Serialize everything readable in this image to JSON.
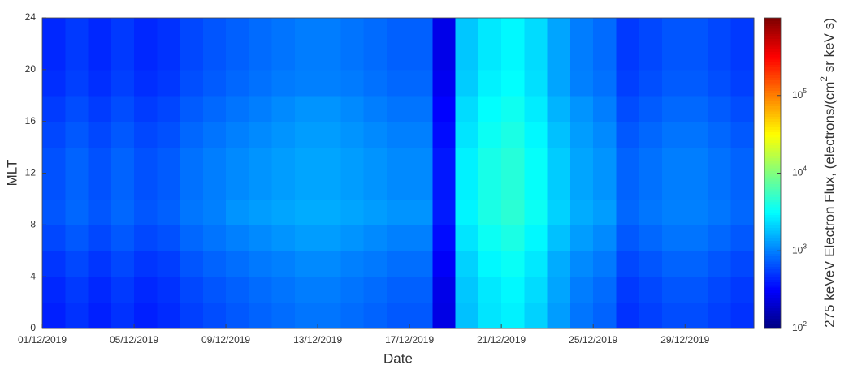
{
  "chart_data": {
    "type": "heatmap",
    "xlabel": "Date",
    "ylabel": "MLT",
    "colorbar_label": "275 keVeV Electron Flux, (electrons/(cm^2 sr keV s)",
    "colormap": "jet",
    "color_scale": "log",
    "clim": [
      100,
      1000000
    ],
    "cticks": [
      {
        "value": 100,
        "label": "10^2"
      },
      {
        "value": 1000,
        "label": "10^3"
      },
      {
        "value": 10000,
        "label": "10^4"
      },
      {
        "value": 100000,
        "label": "10^5"
      }
    ],
    "xlim": [
      0,
      31
    ],
    "xticks": [
      {
        "value": 0,
        "label": "01/12/2019"
      },
      {
        "value": 4,
        "label": "05/12/2019"
      },
      {
        "value": 8,
        "label": "09/12/2019"
      },
      {
        "value": 12,
        "label": "13/12/2019"
      },
      {
        "value": 16,
        "label": "17/12/2019"
      },
      {
        "value": 20,
        "label": "21/12/2019"
      },
      {
        "value": 24,
        "label": "25/12/2019"
      },
      {
        "value": 28,
        "label": "29/12/2019"
      }
    ],
    "ylim": [
      0,
      24
    ],
    "yticks": [
      0,
      4,
      8,
      12,
      16,
      20,
      24
    ],
    "x": [
      0,
      1,
      2,
      3,
      4,
      5,
      6,
      7,
      8,
      9,
      10,
      11,
      12,
      13,
      14,
      15,
      16,
      17,
      18,
      19,
      20,
      21,
      22,
      23,
      24,
      25,
      26,
      27,
      28,
      29,
      30
    ],
    "x_width": 1,
    "y": [
      0,
      2,
      4,
      6,
      8,
      10,
      12,
      14,
      16,
      18,
      20,
      22
    ],
    "y_width": 2,
    "z": [
      [
        420,
        490,
        420,
        490,
        420,
        460,
        560,
        630,
        700,
        770,
        840,
        910,
        910,
        840,
        770,
        700,
        700,
        250,
        1800,
        2500,
        2800,
        2100,
        1300,
        910,
        770,
        490,
        560,
        630,
        630,
        560,
        490
      ],
      [
        450,
        530,
        450,
        530,
        450,
        490,
        600,
        680,
        750,
        830,
        900,
        980,
        980,
        900,
        830,
        750,
        750,
        260,
        1900,
        2600,
        3000,
        2300,
        1400,
        980,
        830,
        530,
        600,
        680,
        680,
        600,
        530
      ],
      [
        510,
        600,
        510,
        600,
        510,
        550,
        680,
        770,
        850,
        940,
        1000,
        1100,
        1100,
        1000,
        940,
        850,
        850,
        300,
        2100,
        3000,
        3400,
        2600,
        1500,
        1100,
        940,
        600,
        680,
        770,
        770,
        680,
        600
      ],
      [
        600,
        700,
        600,
        700,
        600,
        650,
        800,
        900,
        1000,
        1100,
        1200,
        1300,
        1300,
        1200,
        1100,
        1000,
        1000,
        350,
        2500,
        3500,
        4000,
        3000,
        1800,
        1300,
        1100,
        700,
        800,
        900,
        900,
        800,
        700
      ],
      [
        690,
        800,
        690,
        800,
        690,
        750,
        920,
        1000,
        1200,
        1300,
        1400,
        1500,
        1500,
        1400,
        1300,
        1200,
        1200,
        400,
        2900,
        4000,
        4600,
        3500,
        2100,
        1500,
        1300,
        800,
        920,
        1000,
        1000,
        920,
        800
      ],
      [
        660,
        770,
        660,
        770,
        660,
        720,
        880,
        990,
        1100,
        1200,
        1300,
        1400,
        1400,
        1300,
        1200,
        1100,
        1100,
        390,
        2800,
        3900,
        4400,
        3300,
        2000,
        1400,
        1200,
        770,
        880,
        990,
        990,
        880,
        770
      ],
      [
        660,
        770,
        660,
        770,
        660,
        720,
        880,
        990,
        1100,
        1200,
        1300,
        1400,
        1400,
        1300,
        1200,
        1100,
        1100,
        390,
        2800,
        3900,
        4400,
        3300,
        2000,
        1400,
        1200,
        770,
        880,
        990,
        990,
        880,
        770
      ],
      [
        600,
        700,
        600,
        700,
        600,
        650,
        800,
        900,
        1000,
        1100,
        1200,
        1300,
        1300,
        1200,
        1100,
        1000,
        1000,
        350,
        2500,
        3500,
        4000,
        3000,
        1800,
        1300,
        1100,
        700,
        800,
        900,
        900,
        800,
        700
      ],
      [
        540,
        630,
        540,
        630,
        540,
        590,
        720,
        810,
        900,
        990,
        1100,
        1200,
        1200,
        1100,
        990,
        900,
        900,
        320,
        2300,
        3200,
        3600,
        2700,
        1600,
        1200,
        990,
        630,
        720,
        810,
        810,
        720,
        630
      ],
      [
        480,
        560,
        480,
        560,
        480,
        520,
        640,
        720,
        800,
        880,
        960,
        1000,
        1000,
        960,
        880,
        800,
        800,
        280,
        2000,
        2800,
        3200,
        2400,
        1400,
        1000,
        880,
        560,
        640,
        720,
        720,
        640,
        560
      ],
      [
        450,
        530,
        450,
        530,
        450,
        490,
        600,
        680,
        750,
        830,
        900,
        980,
        980,
        900,
        830,
        750,
        750,
        260,
        1900,
        2600,
        3000,
        2300,
        1400,
        980,
        830,
        530,
        600,
        680,
        680,
        600,
        530
      ],
      [
        450,
        530,
        450,
        530,
        450,
        490,
        600,
        680,
        750,
        830,
        900,
        980,
        980,
        900,
        830,
        750,
        750,
        260,
        1900,
        2600,
        3000,
        2300,
        1400,
        980,
        830,
        530,
        600,
        680,
        680,
        600,
        530
      ]
    ]
  }
}
